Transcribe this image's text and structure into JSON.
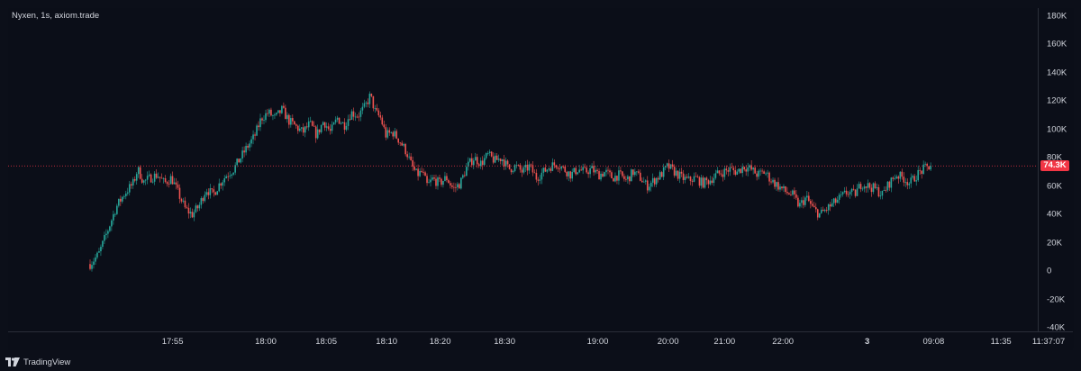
{
  "legend": {
    "text": "Nyxen, 1s, axiom.trade"
  },
  "footer": {
    "brand": "TradingView"
  },
  "last_price": {
    "label": "74.3K",
    "value": 74300,
    "color": "#f23645"
  },
  "colors": {
    "up": "#26a69a",
    "down": "#ef5350",
    "background": "#0b0e18"
  },
  "chart_data": {
    "type": "candlestick",
    "title": "Nyxen, 1s, axiom.trade",
    "xlabel": "",
    "ylabel": "",
    "ylim": [
      -40000,
      180000
    ],
    "grid": false,
    "y_ticks": [
      {
        "label": "180K",
        "value": 180000
      },
      {
        "label": "160K",
        "value": 160000
      },
      {
        "label": "140K",
        "value": 140000
      },
      {
        "label": "120K",
        "value": 120000
      },
      {
        "label": "100K",
        "value": 100000
      },
      {
        "label": "80K",
        "value": 80000
      },
      {
        "label": "60K",
        "value": 60000
      },
      {
        "label": "40K",
        "value": 40000
      },
      {
        "label": "20K",
        "value": 20000
      },
      {
        "label": "0",
        "value": 0
      },
      {
        "label": "-20K",
        "value": -20000
      },
      {
        "label": "-40K",
        "value": -40000
      }
    ],
    "x_ticks": [
      {
        "label": "17:55",
        "pos": 0.106,
        "bold": false
      },
      {
        "label": "18:00",
        "pos": 0.2,
        "bold": false
      },
      {
        "label": "18:05",
        "pos": 0.261,
        "bold": false
      },
      {
        "label": "18:10",
        "pos": 0.322,
        "bold": false
      },
      {
        "label": "18:20",
        "pos": 0.376,
        "bold": false
      },
      {
        "label": "18:30",
        "pos": 0.441,
        "bold": false
      },
      {
        "label": "19:00",
        "pos": 0.535,
        "bold": false
      },
      {
        "label": "20:00",
        "pos": 0.606,
        "bold": false
      },
      {
        "label": "21:00",
        "pos": 0.663,
        "bold": false
      },
      {
        "label": "22:00",
        "pos": 0.722,
        "bold": false
      },
      {
        "label": "3",
        "pos": 0.807,
        "bold": true
      },
      {
        "label": "09:08",
        "pos": 0.874,
        "bold": false
      },
      {
        "label": "11:35",
        "pos": 0.942,
        "bold": false
      },
      {
        "label": "11:37:07",
        "pos": 0.99,
        "bold": false
      }
    ],
    "price_path": [
      [
        0.0,
        5000
      ],
      [
        0.01,
        12000
      ],
      [
        0.02,
        28000
      ],
      [
        0.03,
        45000
      ],
      [
        0.04,
        55000
      ],
      [
        0.05,
        62000
      ],
      [
        0.055,
        72000
      ],
      [
        0.062,
        63000
      ],
      [
        0.07,
        66000
      ],
      [
        0.078,
        68000
      ],
      [
        0.086,
        62000
      ],
      [
        0.094,
        66000
      ],
      [
        0.102,
        55000
      ],
      [
        0.11,
        44000
      ],
      [
        0.118,
        40000
      ],
      [
        0.126,
        46000
      ],
      [
        0.134,
        58000
      ],
      [
        0.142,
        54000
      ],
      [
        0.15,
        62000
      ],
      [
        0.158,
        68000
      ],
      [
        0.166,
        72000
      ],
      [
        0.174,
        80000
      ],
      [
        0.182,
        88000
      ],
      [
        0.19,
        95000
      ],
      [
        0.198,
        108000
      ],
      [
        0.206,
        112000
      ],
      [
        0.214,
        108000
      ],
      [
        0.222,
        114000
      ],
      [
        0.23,
        106000
      ],
      [
        0.238,
        102000
      ],
      [
        0.246,
        98000
      ],
      [
        0.254,
        104000
      ],
      [
        0.262,
        96000
      ],
      [
        0.27,
        106000
      ],
      [
        0.278,
        98000
      ],
      [
        0.286,
        108000
      ],
      [
        0.294,
        103000
      ],
      [
        0.302,
        112000
      ],
      [
        0.31,
        110000
      ],
      [
        0.318,
        116000
      ],
      [
        0.324,
        124000
      ],
      [
        0.33,
        112000
      ],
      [
        0.336,
        108000
      ],
      [
        0.342,
        96000
      ],
      [
        0.35,
        98000
      ],
      [
        0.358,
        92000
      ],
      [
        0.366,
        84000
      ],
      [
        0.372,
        74000
      ],
      [
        0.378,
        68000
      ],
      [
        0.384,
        70000
      ],
      [
        0.39,
        60000
      ],
      [
        0.396,
        65000
      ],
      [
        0.404,
        62000
      ],
      [
        0.412,
        66000
      ],
      [
        0.42,
        58000
      ],
      [
        0.428,
        62000
      ],
      [
        0.436,
        74000
      ],
      [
        0.444,
        80000
      ],
      [
        0.452,
        76000
      ],
      [
        0.46,
        82000
      ],
      [
        0.468,
        78000
      ],
      [
        0.476,
        80000
      ],
      [
        0.484,
        72000
      ],
      [
        0.492,
        74000
      ],
      [
        0.5,
        70000
      ],
      [
        0.508,
        74000
      ],
      [
        0.516,
        66000
      ],
      [
        0.524,
        70000
      ],
      [
        0.532,
        74000
      ],
      [
        0.54,
        76000
      ],
      [
        0.548,
        72000
      ],
      [
        0.556,
        68000
      ],
      [
        0.564,
        72000
      ],
      [
        0.572,
        70000
      ],
      [
        0.58,
        72000
      ],
      [
        0.588,
        68000
      ],
      [
        0.596,
        70000
      ],
      [
        0.604,
        66000
      ],
      [
        0.612,
        68000
      ],
      [
        0.62,
        64000
      ],
      [
        0.628,
        70000
      ],
      [
        0.636,
        66000
      ],
      [
        0.644,
        60000
      ],
      [
        0.652,
        64000
      ],
      [
        0.66,
        68000
      ],
      [
        0.668,
        74000
      ],
      [
        0.676,
        70000
      ],
      [
        0.684,
        66000
      ],
      [
        0.692,
        64000
      ],
      [
        0.7,
        66000
      ],
      [
        0.708,
        62000
      ],
      [
        0.716,
        64000
      ],
      [
        0.724,
        68000
      ],
      [
        0.732,
        70000
      ],
      [
        0.74,
        72000
      ],
      [
        0.748,
        70000
      ],
      [
        0.756,
        74000
      ],
      [
        0.764,
        72000
      ],
      [
        0.772,
        68000
      ],
      [
        0.78,
        70000
      ],
      [
        0.788,
        64000
      ],
      [
        0.796,
        60000
      ],
      [
        0.804,
        56000
      ],
      [
        0.812,
        54000
      ],
      [
        0.82,
        46000
      ],
      [
        0.828,
        52000
      ],
      [
        0.836,
        44000
      ],
      [
        0.844,
        40000
      ],
      [
        0.852,
        44000
      ],
      [
        0.86,
        48000
      ],
      [
        0.868,
        52000
      ],
      [
        0.876,
        56000
      ],
      [
        0.884,
        54000
      ],
      [
        0.892,
        62000
      ],
      [
        0.9,
        60000
      ],
      [
        0.908,
        58000
      ],
      [
        0.916,
        54000
      ],
      [
        0.924,
        62000
      ],
      [
        0.932,
        68000
      ],
      [
        0.94,
        66000
      ],
      [
        0.948,
        62000
      ],
      [
        0.956,
        68000
      ],
      [
        0.964,
        72000
      ],
      [
        0.972,
        74300
      ]
    ]
  }
}
